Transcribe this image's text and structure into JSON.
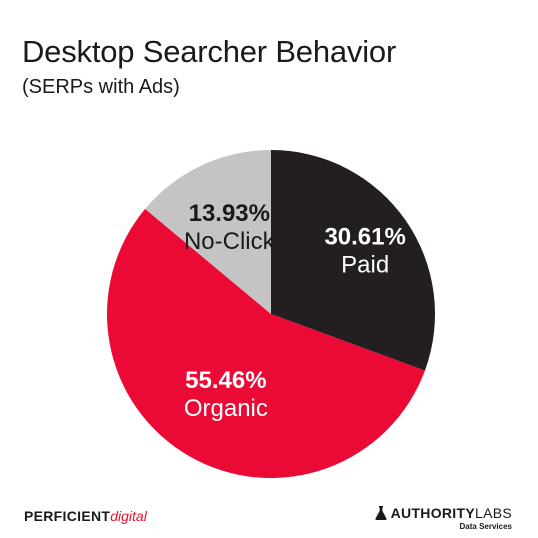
{
  "chart_data": {
    "type": "pie",
    "title": "Desktop Searcher Behavior",
    "subtitle": "(SERPs with Ads)",
    "slices": [
      {
        "label": "Paid",
        "value": 30.61,
        "display": "30.61%",
        "color": "#231f20"
      },
      {
        "label": "Organic",
        "value": 55.46,
        "display": "55.46%",
        "color": "#ea0a35"
      },
      {
        "label": "No-Click",
        "value": 13.93,
        "display": "13.93%",
        "color": "#c4c4c4"
      }
    ]
  },
  "branding": {
    "left_logo_bold": "PERFICIENT",
    "left_logo_accent": "digital",
    "right_logo_main": "AUTHORITY",
    "right_logo_accent": "LABS",
    "right_logo_sub": "Data Services"
  }
}
